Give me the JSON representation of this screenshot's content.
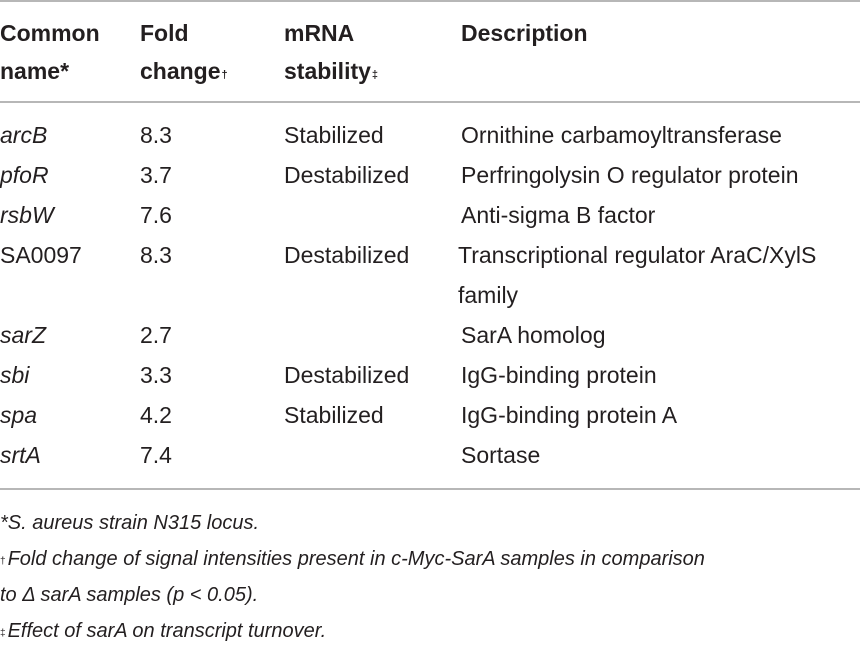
{
  "headers": {
    "col1_line1": "Common",
    "col1_line2": "name*",
    "col2_line1": "Fold",
    "col2_line2": "change",
    "col2_mark": "†",
    "col3_line1": "mRNA",
    "col3_line2": "stability",
    "col3_mark": "‡",
    "col4": "Description"
  },
  "rows": [
    {
      "name": "arcB",
      "fold": "8.3",
      "stability": "Stabilized",
      "description": "Ornithine carbamoyltransferase"
    },
    {
      "name": "pfoR",
      "fold": "3.7",
      "stability": "Destabilized",
      "description": "Perfringolysin O regulator protein"
    },
    {
      "name": "rsbW",
      "fold": "7.6",
      "stability": "",
      "description": "Anti-sigma B factor"
    },
    {
      "name": "SA0097",
      "fold": "8.3",
      "stability": "Destabilized",
      "description": "Transcriptional regulator AraC/XylS family"
    },
    {
      "name": "sarZ",
      "fold": "2.7",
      "stability": "",
      "description": "SarA homolog"
    },
    {
      "name": "sbi",
      "fold": "3.3",
      "stability": "Destabilized",
      "description": "IgG-binding protein"
    },
    {
      "name": "spa",
      "fold": "4.2",
      "stability": "Stabilized",
      "description": "IgG-binding protein A"
    },
    {
      "name": "srtA",
      "fold": "7.4",
      "stability": "",
      "description": "Sortase"
    }
  ],
  "footnotes": {
    "note1": "*S. aureus strain N315 locus.",
    "note2_mark": "†",
    "note2_line1": "Fold change of signal intensities present in c-Myc-SarA samples in comparison",
    "note2_line2": "to Δ sarA samples (p < 0.05).",
    "note3_mark": "‡",
    "note3": "Effect of sarA on transcript turnover."
  }
}
